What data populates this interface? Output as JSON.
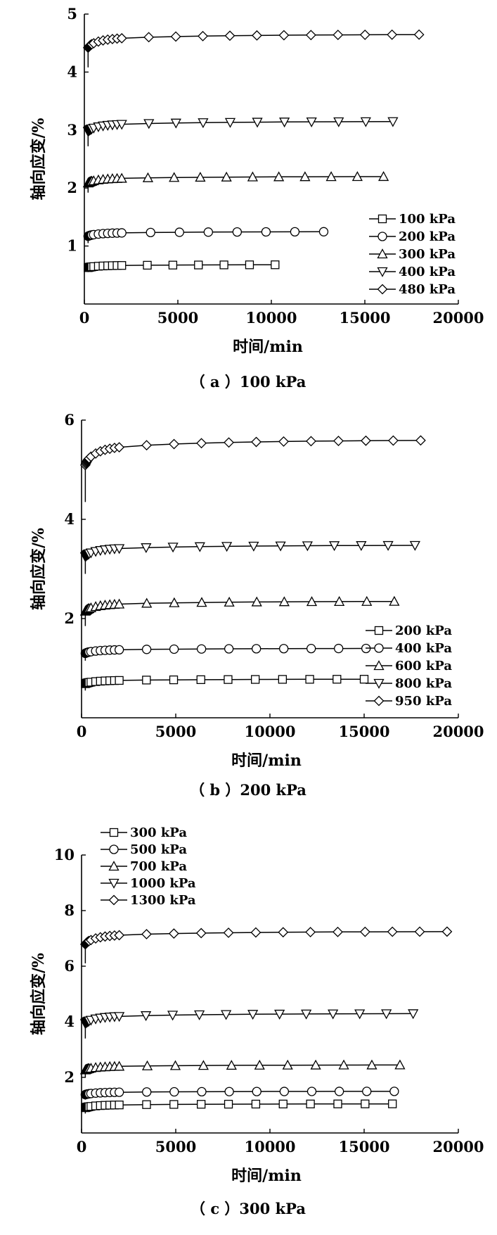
{
  "chart_data": [
    {
      "type": "line",
      "caption": "（ a ）100 kPa",
      "xlabel": "时间/min",
      "ylabel": "轴向应变/%",
      "xlim": [
        0,
        20000
      ],
      "ylim": [
        0,
        5
      ],
      "xticks": [
        "0",
        "5000",
        "10000",
        "15000",
        "20000"
      ],
      "yticks": [
        "1",
        "2",
        "3",
        "4",
        "5"
      ],
      "legend_position": "bottom-right",
      "series": [
        {
          "name": "100 kPa",
          "marker": "square",
          "end": 10200,
          "base": 0.55,
          "final": 0.68
        },
        {
          "name": "200 kPa",
          "marker": "circle",
          "end": 12800,
          "base": 1.05,
          "final": 1.25
        },
        {
          "name": "300 kPa",
          "marker": "triangle-up",
          "end": 16000,
          "base": 1.92,
          "final": 2.2
        },
        {
          "name": "400 kPa",
          "marker": "triangle-down",
          "end": 16500,
          "base": 2.72,
          "final": 3.15
        },
        {
          "name": "480 kPa",
          "marker": "diamond",
          "end": 17900,
          "base": 4.08,
          "final": 4.65
        }
      ]
    },
    {
      "type": "line",
      "caption": "（ b ）200 kPa",
      "xlabel": "时间/min",
      "ylabel": "轴向应变/%",
      "xlim": [
        0,
        20000
      ],
      "ylim": [
        0,
        6
      ],
      "xticks": [
        "0",
        "5000",
        "10000",
        "15000",
        "20000"
      ],
      "yticks": [
        "2",
        "4",
        "6"
      ],
      "legend_position": "bottom-right",
      "series": [
        {
          "name": "200 kPa",
          "marker": "square",
          "end": 15000,
          "base": 0.55,
          "final": 0.78
        },
        {
          "name": "400 kPa",
          "marker": "circle",
          "end": 15100,
          "base": 1.15,
          "final": 1.4
        },
        {
          "name": "600 kPa",
          "marker": "triangle-up",
          "end": 16600,
          "base": 1.85,
          "final": 2.35
        },
        {
          "name": "800 kPa",
          "marker": "triangle-down",
          "end": 17700,
          "base": 2.9,
          "final": 3.48
        },
        {
          "name": "950 kPa",
          "marker": "diamond",
          "end": 18000,
          "base": 4.35,
          "final": 5.6
        }
      ]
    },
    {
      "type": "line",
      "caption": "（ c ）300 kPa",
      "xlabel": "时间/min",
      "ylabel": "轴向应变/%",
      "xlim": [
        0,
        20000
      ],
      "ylim": [
        0,
        10
      ],
      "xticks": [
        "0",
        "5000",
        "10000",
        "15000",
        "20000"
      ],
      "yticks": [
        "2",
        "4",
        "6",
        "8",
        "10"
      ],
      "legend_position": "top-left",
      "series": [
        {
          "name": "300 kPa",
          "marker": "square",
          "end": 16500,
          "base": 0.7,
          "final": 1.05
        },
        {
          "name": "500 kPa",
          "marker": "circle",
          "end": 16600,
          "base": 1.2,
          "final": 1.5
        },
        {
          "name": "700 kPa",
          "marker": "triangle-up",
          "end": 16900,
          "base": 2.0,
          "final": 2.45
        },
        {
          "name": "1000 kPa",
          "marker": "triangle-down",
          "end": 17600,
          "base": 3.4,
          "final": 4.3
        },
        {
          "name": "1300 kPa",
          "marker": "diamond",
          "end": 19400,
          "base": 6.1,
          "final": 7.25
        }
      ]
    }
  ]
}
